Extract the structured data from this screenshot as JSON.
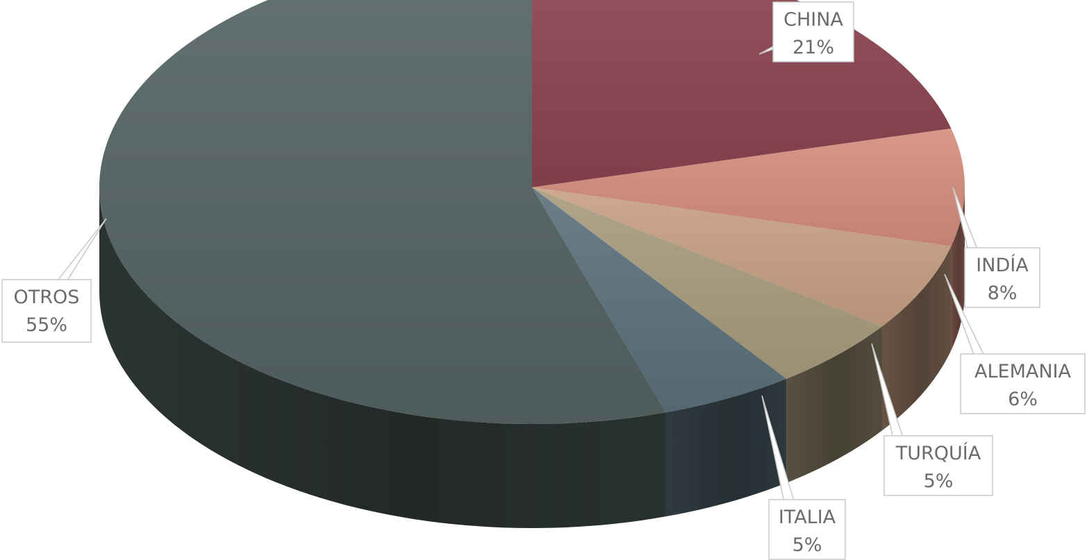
{
  "chart_data": {
    "type": "pie",
    "title": "",
    "slices": [
      {
        "label": "CHINA",
        "value": 21,
        "value_label": "21%",
        "color": "#8a4350"
      },
      {
        "label": "INDÍA",
        "value": 8,
        "value_label": "8%",
        "color": "#d48d7d"
      },
      {
        "label": "ALEMANIA",
        "value": 6,
        "value_label": "6%",
        "color": "#c7a083"
      },
      {
        "label": "TURQUÍA",
        "value": 5,
        "value_label": "5%",
        "color": "#a89b7e"
      },
      {
        "label": "ITALIA",
        "value": 5,
        "value_label": "5%",
        "color": "#5a717a"
      },
      {
        "label": "OTROS",
        "value": 55,
        "value_label": "55%",
        "color": "#546362"
      }
    ],
    "start_angle_deg": -90,
    "direction": "clockwise",
    "style": "3d",
    "legend": "none",
    "data_labels": "callout"
  }
}
